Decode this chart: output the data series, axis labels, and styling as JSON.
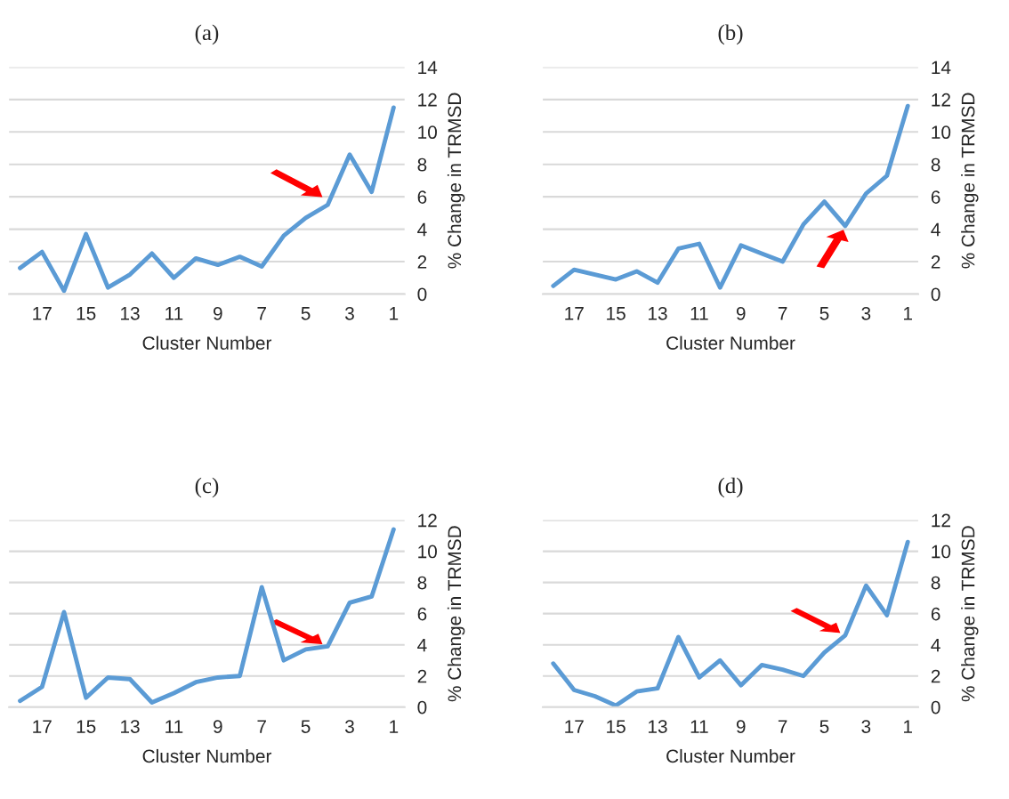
{
  "chart_data": [
    {
      "type": "line",
      "title": "(a)",
      "xlabel": "Cluster Number",
      "ylabel": "% Change in TRMSD",
      "x": [
        18,
        17,
        16,
        15,
        14,
        13,
        12,
        11,
        10,
        9,
        8,
        7,
        6,
        5,
        4,
        3,
        2,
        1
      ],
      "xlim": [
        18.5,
        0.5
      ],
      "xticks": [
        17,
        15,
        13,
        11,
        9,
        7,
        5,
        3,
        1
      ],
      "ylim": [
        0,
        14
      ],
      "yticks": [
        0,
        2,
        4,
        6,
        8,
        10,
        12,
        14
      ],
      "grid": "y",
      "series": [
        {
          "color": "#5b9bd5",
          "values": [
            1.6,
            2.6,
            0.2,
            3.7,
            0.4,
            1.2,
            2.5,
            1.0,
            2.2,
            1.8,
            2.3,
            1.7,
            3.6,
            4.7,
            5.5,
            8.6,
            6.3,
            11.5
          ]
        }
      ]
    },
    {
      "type": "line",
      "title": "(b)",
      "xlabel": "Cluster Number",
      "ylabel": "% Change in TRMSD",
      "x": [
        18,
        17,
        16,
        15,
        14,
        13,
        12,
        11,
        10,
        9,
        8,
        7,
        6,
        5,
        4,
        3,
        2,
        1
      ],
      "xlim": [
        18.5,
        0.5
      ],
      "xticks": [
        17,
        15,
        13,
        11,
        9,
        7,
        5,
        3,
        1
      ],
      "ylim": [
        0,
        14
      ],
      "yticks": [
        0,
        2,
        4,
        6,
        8,
        10,
        12,
        14
      ],
      "grid": "y",
      "series": [
        {
          "color": "#5b9bd5",
          "values": [
            0.5,
            1.5,
            1.2,
            0.9,
            1.4,
            0.7,
            2.8,
            3.1,
            0.4,
            3.0,
            2.5,
            2.0,
            4.3,
            5.7,
            4.2,
            6.2,
            7.3,
            11.6
          ]
        }
      ]
    },
    {
      "type": "line",
      "title": "(c)",
      "xlabel": "Cluster Number",
      "ylabel": "% Change in TRMSD",
      "x": [
        18,
        17,
        16,
        15,
        14,
        13,
        12,
        11,
        10,
        9,
        8,
        7,
        6,
        5,
        4,
        3,
        2,
        1
      ],
      "xlim": [
        18.5,
        0.5
      ],
      "xticks": [
        17,
        15,
        13,
        11,
        9,
        7,
        5,
        3,
        1
      ],
      "ylim": [
        0,
        12
      ],
      "yticks": [
        0,
        2,
        4,
        6,
        8,
        10,
        12
      ],
      "grid": "y",
      "series": [
        {
          "color": "#5b9bd5",
          "values": [
            0.4,
            1.3,
            6.1,
            0.6,
            1.9,
            1.8,
            0.3,
            0.9,
            1.6,
            1.9,
            2.0,
            7.7,
            3.0,
            3.7,
            3.9,
            6.7,
            7.1,
            11.4
          ]
        }
      ]
    },
    {
      "type": "line",
      "title": "(d)",
      "xlabel": "Cluster Number",
      "ylabel": "% Change in TRMSD",
      "x": [
        18,
        17,
        16,
        15,
        14,
        13,
        12,
        11,
        10,
        9,
        8,
        7,
        6,
        5,
        4,
        3,
        2,
        1
      ],
      "xlim": [
        18.5,
        0.5
      ],
      "xticks": [
        17,
        15,
        13,
        11,
        9,
        7,
        5,
        3,
        1
      ],
      "ylim": [
        0,
        12
      ],
      "yticks": [
        0,
        2,
        4,
        6,
        8,
        10,
        12
      ],
      "grid": "y",
      "series": [
        {
          "color": "#5b9bd5",
          "values": [
            2.8,
            1.1,
            0.7,
            0.1,
            1.0,
            1.2,
            4.5,
            1.9,
            3.0,
            1.4,
            2.7,
            2.4,
            2.0,
            3.5,
            4.6,
            7.8,
            5.9,
            10.6
          ]
        }
      ]
    }
  ]
}
